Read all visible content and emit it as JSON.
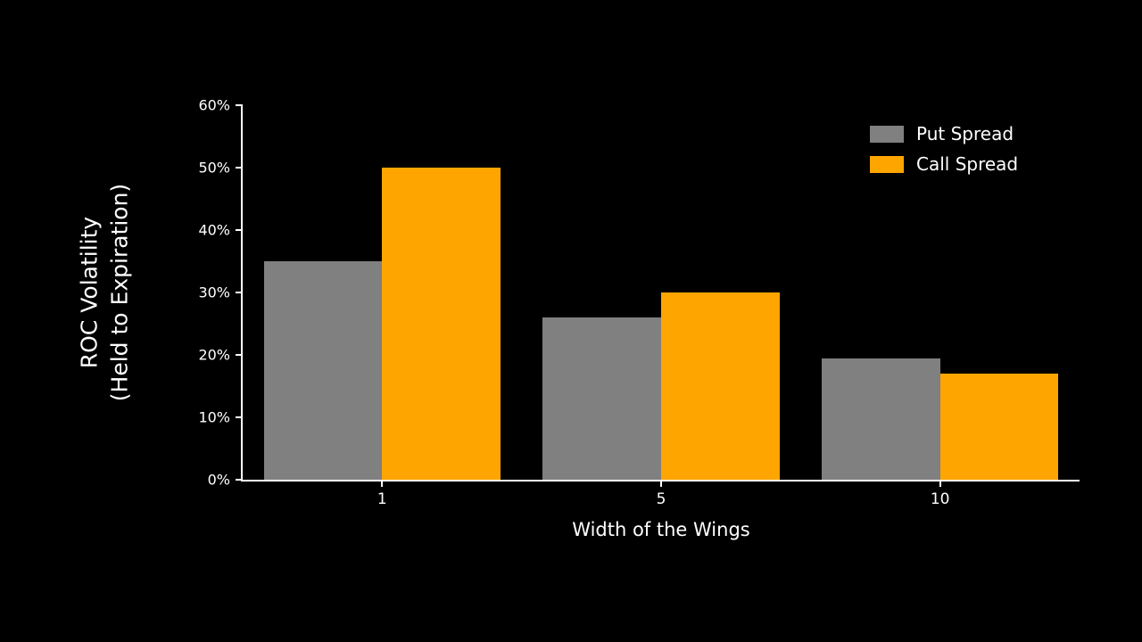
{
  "chart_data": {
    "type": "bar",
    "title": "",
    "categories": [
      "1",
      "5",
      "10"
    ],
    "series": [
      {
        "name": "Put Spread",
        "color": "#808080",
        "values": [
          35,
          26,
          19.5
        ]
      },
      {
        "name": "Call Spread",
        "color": "#FFA500",
        "values": [
          50,
          30,
          17
        ]
      }
    ],
    "xlabel": "Width of the Wings",
    "ylabel": "ROC Volatility\n(Held to Expiration)",
    "ylabel_lines": [
      "ROC Volatility",
      "(Held to Expiration)"
    ],
    "ylim": [
      0,
      60
    ],
    "ytick_step": 10,
    "ytick_labels": [
      "0%",
      "10%",
      "20%",
      "30%",
      "40%",
      "50%",
      "60%"
    ],
    "grid": false,
    "legend_position": "upper right",
    "background_color": "#000000",
    "text_color": "#ffffff",
    "axis_color": "#ffffff"
  }
}
